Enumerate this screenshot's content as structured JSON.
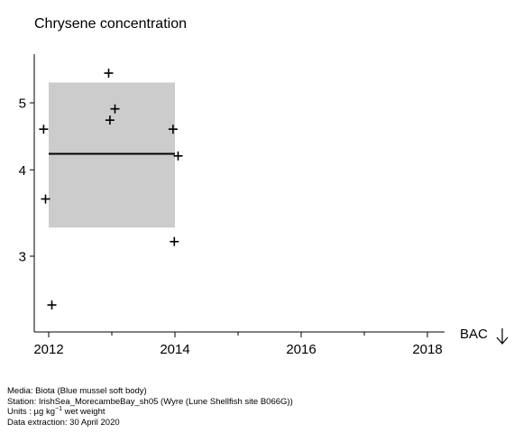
{
  "title": "Chrysene concentration",
  "chart_data": {
    "type": "scatter",
    "title": "Chrysene concentration",
    "x_ticks": [
      2012,
      2014,
      2016,
      2018
    ],
    "y_ticks": [
      3,
      4,
      5
    ],
    "y_scale": "log",
    "xlim": [
      2011.8,
      2018.3
    ],
    "ylim": [
      2.45,
      5.85
    ],
    "points": [
      {
        "x": 2011.92,
        "y": 4.58
      },
      {
        "x": 2011.95,
        "y": 3.63
      },
      {
        "x": 2012.05,
        "y": 2.55
      },
      {
        "x": 2012.95,
        "y": 5.52
      },
      {
        "x": 2012.97,
        "y": 4.72
      },
      {
        "x": 2013.05,
        "y": 4.9
      },
      {
        "x": 2013.97,
        "y": 4.58
      },
      {
        "x": 2013.99,
        "y": 3.15
      },
      {
        "x": 2014.05,
        "y": 4.19
      }
    ],
    "band": {
      "x0": 2012,
      "x1": 2014,
      "lower": 3.3,
      "upper": 5.35,
      "color": "#cccccc"
    },
    "trend_line": {
      "x0": 2012,
      "x1": 2014,
      "y0": 4.22,
      "y1": 4.22
    },
    "reference_label": "BAC",
    "reference_direction": "down",
    "grid": false
  },
  "metadata": {
    "media": "Media: Biota (Blue mussel soft body)",
    "station": "Station: IrishSea_MorecambeBay_sh05 (Wyre (Lune Shellfish site B066G))",
    "units_prefix": "Units : µg kg",
    "units_exp": "−1",
    "units_suffix": " wet weight",
    "extraction": "Data extraction: 30 April 2020"
  }
}
